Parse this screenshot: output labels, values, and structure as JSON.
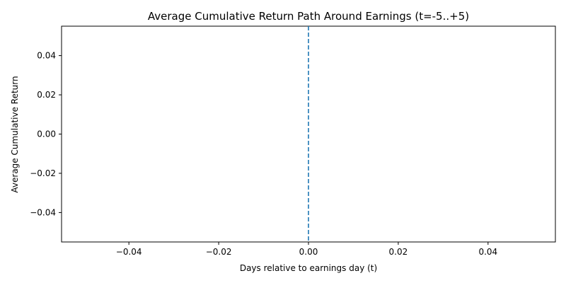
{
  "chart_data": {
    "type": "line",
    "title": "Average Cumulative Return Path Around Earnings (t=-5..+5)",
    "xlabel": "Days relative to earnings day (t)",
    "ylabel": "Average Cumulative Return",
    "xlim": [
      -0.055,
      0.055
    ],
    "ylim": [
      -0.055,
      0.055
    ],
    "xticks": [
      -0.04,
      -0.02,
      0.0,
      0.02,
      0.04
    ],
    "xtick_labels": [
      "−0.04",
      "−0.02",
      "0.00",
      "0.02",
      "0.04"
    ],
    "yticks": [
      0.04,
      0.02,
      0.0,
      -0.02,
      -0.04
    ],
    "ytick_labels": [
      "0.04",
      "0.02",
      "0.00",
      "−0.02",
      "−0.04"
    ],
    "grid": false,
    "legend": "none",
    "series": [],
    "reference_lines": [
      {
        "orientation": "vertical",
        "x": 0,
        "style": "dashed",
        "color": "#1f77b4"
      }
    ],
    "colors": {
      "reference_line": "#1f77b4",
      "axes": "#000000"
    }
  }
}
